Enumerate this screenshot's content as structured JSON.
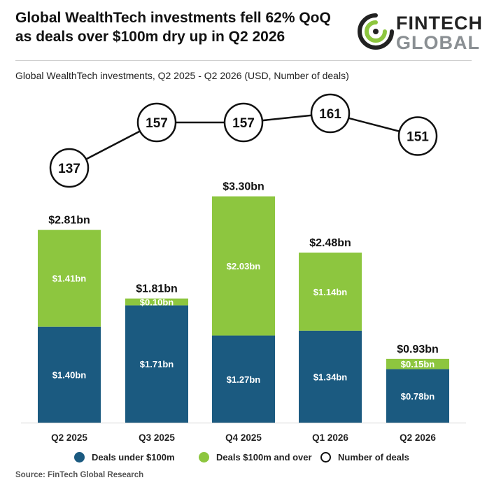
{
  "header": {
    "headline": "Global WealthTech investments fell 62% QoQ as deals over $100m dry up in Q2 2026",
    "logo_line1": "FINTECH",
    "logo_line2": "GLOBAL"
  },
  "colors": {
    "under_100m": "#1b5a80",
    "over_100m": "#8dc63f",
    "deals_marker_fill": "#ffffff",
    "deals_marker_stroke": "#111111",
    "logo_green": "#8dc63f",
    "logo_dark": "#222222"
  },
  "chart_data": {
    "type": "bar",
    "subtype": "stacked-with-line",
    "title": "Global WealthTech investments, Q2 2025 - Q2 2026 (USD, Number of deals)",
    "categories": [
      "Q2 2025",
      "Q3 2025",
      "Q4 2025",
      "Q1 2026",
      "Q2 2026"
    ],
    "series": [
      {
        "name": "Deals under $100m",
        "values": [
          1.4,
          1.71,
          1.27,
          1.34,
          0.78
        ],
        "labels": [
          "$1.40bn",
          "$1.71bn",
          "$1.27bn",
          "$1.34bn",
          "$0.78bn"
        ]
      },
      {
        "name": "Deals $100m and over",
        "values": [
          1.41,
          0.1,
          2.03,
          1.14,
          0.15
        ],
        "labels": [
          "$1.41bn",
          "$0.10bn",
          "$2.03bn",
          "$1.14bn",
          "$0.15bn"
        ]
      }
    ],
    "totals": [
      "$2.81bn",
      "$1.81bn",
      "$3.30bn",
      "$2.48bn",
      "$0.93bn"
    ],
    "totals_values": [
      2.81,
      1.81,
      3.3,
      2.48,
      0.93
    ],
    "deals": {
      "name": "Number of deals",
      "values": [
        137,
        157,
        157,
        161,
        151
      ]
    },
    "legend": [
      "Deals under $100m",
      "Deals $100m and over",
      "Number of deals"
    ],
    "legend_position": "bottom",
    "grid": false
  },
  "footer": {
    "source": "Source: FinTech Global Research"
  }
}
